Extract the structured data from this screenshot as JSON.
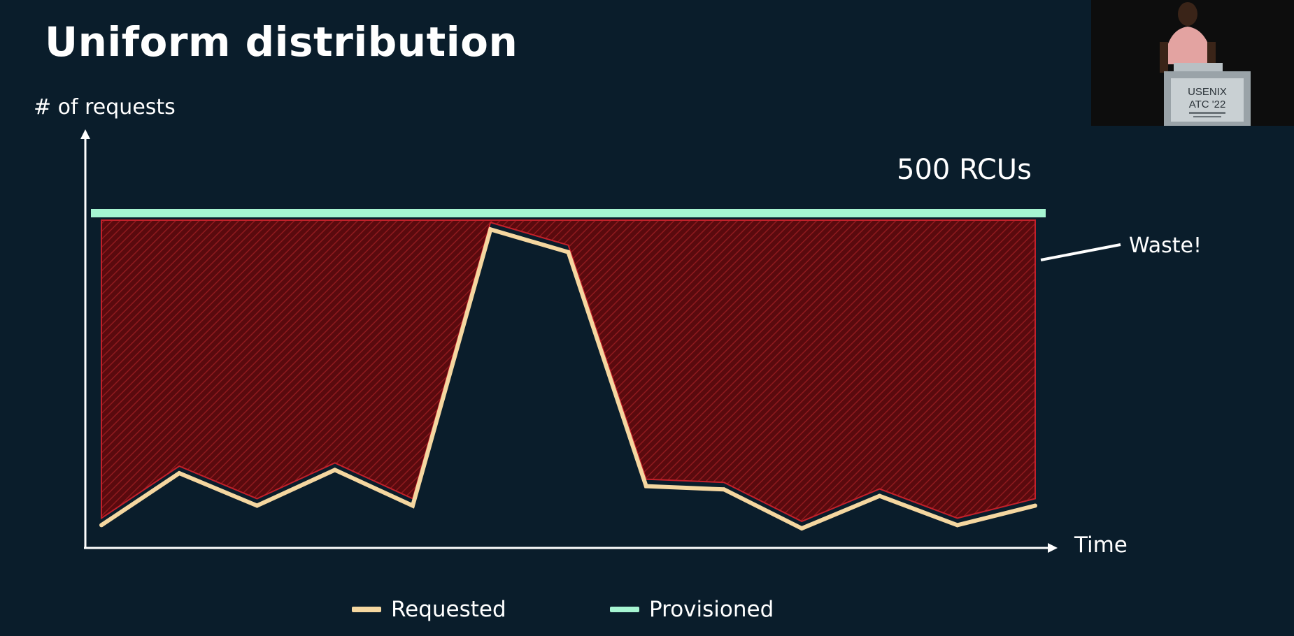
{
  "slide": {
    "title": "Uniform distribution"
  },
  "colors": {
    "background": "#0a1d2b",
    "requested": "#f5d7a0",
    "provisioned": "#a6f5d2",
    "waste_fill": "#5a0a0e",
    "waste_hatch": "#8f1a1e",
    "waste_edge": "#c4202a",
    "axis": "#ffffff"
  },
  "chart_data": {
    "type": "line",
    "xlabel": "Time",
    "ylabel": "# of requests",
    "x": [
      0,
      1,
      2,
      3,
      4,
      5,
      6,
      7,
      8,
      9,
      10,
      11,
      12
    ],
    "series": [
      {
        "name": "Requested",
        "values": [
          4,
          20,
          10,
          21,
          10,
          95,
          88,
          16,
          15,
          3,
          13,
          4,
          10
        ]
      },
      {
        "name": "Provisioned",
        "values": [
          100,
          100,
          100,
          100,
          100,
          100,
          100,
          100,
          100,
          100,
          100,
          100,
          100
        ]
      }
    ],
    "ylim": [
      0,
      110
    ],
    "grid": false,
    "legend_position": "bottom",
    "annotations": [
      {
        "text": "500 RCUs",
        "target": "Provisioned"
      },
      {
        "text": "Waste!",
        "target": "area between Provisioned and Requested"
      }
    ]
  },
  "inset": {
    "podium_line1": "USENIX",
    "podium_line2": "ATC '22"
  }
}
